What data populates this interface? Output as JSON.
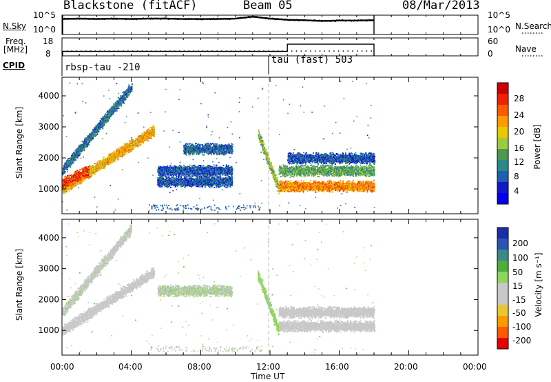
{
  "header": {
    "title": "Blackstone (fitACF)",
    "beam": "Beam 05",
    "date": "08/Mar/2013"
  },
  "noise_panel": {
    "left_label": "N.Sky",
    "right_label": "N.Search",
    "left_ticks": [
      "10^5",
      "10^0"
    ],
    "right_ticks": [
      "10^5",
      "10^0"
    ]
  },
  "freq_panel": {
    "left_label_line1": "Freq.",
    "left_label_line2": "[MHz]",
    "right_label": "Nave",
    "left_ticks": [
      "18",
      "8"
    ],
    "right_ticks": [
      "60",
      "0"
    ]
  },
  "cpid": {
    "label": "CPID",
    "segments": [
      {
        "start_hour": 0.0,
        "name": "rbsp-tau -210"
      },
      {
        "start_hour": 12.0,
        "name": "tau (fast) 503"
      }
    ]
  },
  "x_axis": {
    "label": "Time UT",
    "ticks": [
      "00:00",
      "04:00",
      "08:00",
      "12:00",
      "16:00",
      "20:00",
      "00:00"
    ]
  },
  "power_colorbar": {
    "label": "Power [dB]",
    "ticks": [
      "28",
      "24",
      "20",
      "16",
      "12",
      "8",
      "4"
    ],
    "colors": [
      "#cc0000",
      "#ee2200",
      "#ff5a00",
      "#ff9a00",
      "#e8c800",
      "#9ccc3a",
      "#4a9a50",
      "#2a8a8a",
      "#1e5fb0",
      "#1018c8",
      "#0000ee"
    ]
  },
  "velocity_colorbar": {
    "label": "Velocity [m s⁻¹]",
    "ticks": [
      "200",
      "100",
      "50",
      "15",
      "-15",
      "-50",
      "-100",
      "-200"
    ],
    "colors": [
      "#1a2ea8",
      "#2a55b0",
      "#3a8a8a",
      "#4caf3c",
      "#8cd65a",
      "#c8c8c8",
      "#c8c8c8",
      "#e8c830",
      "#ff9900",
      "#ff5a00",
      "#e60000"
    ]
  },
  "chart_data": [
    {
      "type": "line",
      "panel": "noise",
      "series": [
        {
          "name": "N.Sky",
          "hours": [
            0,
            1,
            2,
            3,
            4,
            5,
            6,
            7,
            8,
            9,
            10,
            11,
            12,
            13,
            14,
            15,
            16,
            17,
            18
          ],
          "values_log10": [
            4.0,
            4.1,
            4.0,
            4.1,
            4.0,
            4.1,
            4.1,
            4.0,
            4.0,
            4.0,
            4.1,
            4.6,
            4.1,
            3.8,
            3.7,
            3.5,
            3.6,
            3.6,
            3.7
          ]
        }
      ],
      "xlim": [
        0,
        24
      ],
      "ylim_log10": [
        0,
        5
      ]
    },
    {
      "type": "line",
      "panel": "frequency",
      "series": [
        {
          "name": "Freq",
          "hours": [
            0,
            13,
            13,
            18
          ],
          "values": [
            10.5,
            10.5,
            14.5,
            14.5
          ]
        },
        {
          "name": "Nave",
          "hours": [
            0,
            12,
            13,
            18
          ],
          "values": [
            15,
            15,
            16,
            16
          ]
        }
      ],
      "xlim": [
        0,
        24
      ],
      "ylim": [
        8,
        18
      ]
    },
    {
      "type": "heatmap",
      "panel": "power",
      "xlabel": "Time UT",
      "ylabel": "Slant Range [km]",
      "xlim_hours": [
        0,
        24
      ],
      "ylim_km": [
        200,
        4600
      ],
      "yticks": [
        1000,
        2000,
        3000,
        4000
      ],
      "data_end_hour": 18,
      "echo_bands": [
        {
          "start_hour": 0.0,
          "end_hour": 4.0,
          "start_km": 1600,
          "end_km": 4300,
          "value_dB": 8
        },
        {
          "start_hour": 0.0,
          "end_hour": 5.3,
          "start_km": 1000,
          "end_km": 2900,
          "value_dB": 20
        },
        {
          "start_hour": 0.0,
          "end_hour": 1.5,
          "start_km": 1200,
          "end_km": 1600,
          "value_dB": 26
        },
        {
          "start_hour": 5.5,
          "end_hour": 9.8,
          "start_km": 1600,
          "end_km": 1600,
          "value_dB": 6
        },
        {
          "start_hour": 5.5,
          "end_hour": 9.8,
          "start_km": 1250,
          "end_km": 1250,
          "value_dB": 6
        },
        {
          "start_hour": 7.0,
          "end_hour": 9.8,
          "start_km": 2300,
          "end_km": 2300,
          "value_dB": 7
        },
        {
          "start_hour": 11.3,
          "end_hour": 12.5,
          "start_km": 2800,
          "end_km": 1000,
          "value_dB": 14
        },
        {
          "start_hour": 12.5,
          "end_hour": 18.0,
          "start_km": 1100,
          "end_km": 1100,
          "value_dB": 22
        },
        {
          "start_hour": 12.5,
          "end_hour": 18.0,
          "start_km": 1600,
          "end_km": 1600,
          "value_dB": 12
        },
        {
          "start_hour": 13.0,
          "end_hour": 18.0,
          "start_km": 2000,
          "end_km": 2000,
          "value_dB": 6
        }
      ]
    },
    {
      "type": "heatmap",
      "panel": "velocity",
      "xlabel": "Time UT",
      "ylabel": "Slant Range [km]",
      "xlim_hours": [
        0,
        24
      ],
      "ylim_km": [
        200,
        4600
      ],
      "yticks": [
        1000,
        2000,
        3000,
        4000
      ],
      "data_end_hour": 18,
      "echo_bands": [
        {
          "start_hour": 0.0,
          "end_hour": 4.0,
          "start_km": 1600,
          "end_km": 4300,
          "value_ms": 10
        },
        {
          "start_hour": 0.0,
          "end_hour": 5.3,
          "start_km": 1000,
          "end_km": 2900,
          "value_ms": 0
        },
        {
          "start_hour": 5.5,
          "end_hour": 9.8,
          "start_km": 2300,
          "end_km": 2300,
          "value_ms": 20
        },
        {
          "start_hour": 11.3,
          "end_hour": 12.5,
          "start_km": 2800,
          "end_km": 1000,
          "value_ms": 40
        },
        {
          "start_hour": 12.5,
          "end_hour": 18.0,
          "start_km": 1150,
          "end_km": 1150,
          "value_ms": 0
        },
        {
          "start_hour": 12.5,
          "end_hour": 18.0,
          "start_km": 1600,
          "end_km": 1600,
          "value_ms": 5
        }
      ]
    }
  ]
}
